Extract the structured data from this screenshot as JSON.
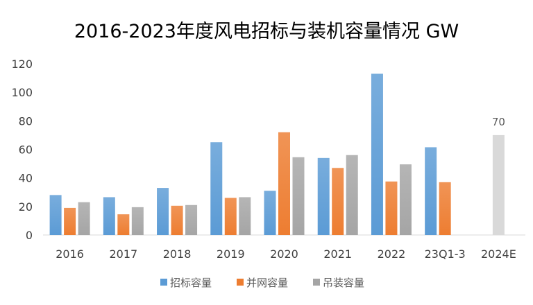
{
  "chart_data": {
    "type": "bar",
    "title": "2016-2023年度风电招标与装机容量情况 GW",
    "categories": [
      "2016",
      "2017",
      "2018",
      "2019",
      "2020",
      "2021",
      "2022",
      "23Q1-3",
      "2024E"
    ],
    "ylim": [
      0,
      120
    ],
    "yticks": [
      0,
      20,
      40,
      60,
      80,
      100,
      120
    ],
    "grid": false,
    "legend_position": "bottom",
    "series": [
      {
        "name": "招标容量",
        "color": "#5b9bd5",
        "values": [
          28,
          26.5,
          33,
          65,
          31,
          54,
          113,
          61.5,
          null
        ]
      },
      {
        "name": "并网容量",
        "color": "#ed7d31",
        "values": [
          19,
          14.5,
          20.5,
          26,
          72,
          47,
          37.5,
          37,
          null
        ]
      },
      {
        "name": "吊装容量",
        "color": "#a5a5a5",
        "values": [
          23,
          19.5,
          21,
          26.5,
          54.5,
          56,
          49.5,
          null,
          null
        ]
      }
    ],
    "extra_bars": [
      {
        "category": "2024E",
        "value": 70,
        "label": "70",
        "color": "#d9d9d9"
      }
    ]
  }
}
